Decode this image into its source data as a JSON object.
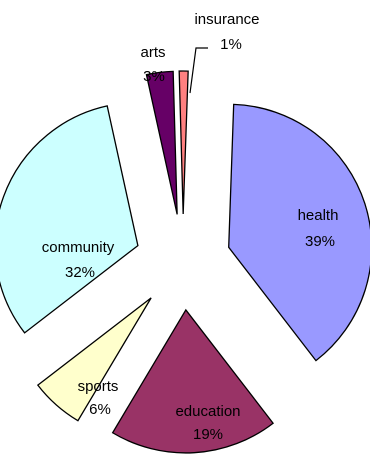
{
  "chart_data": {
    "type": "pie",
    "exploded": true,
    "title": "",
    "slices": [
      {
        "label": "health",
        "pct_text": "39%",
        "value": 39,
        "color": "#9999ff"
      },
      {
        "label": "education",
        "pct_text": "19%",
        "value": 19,
        "color": "#993366"
      },
      {
        "label": "sports",
        "pct_text": "6%",
        "value": 6,
        "color": "#ffffcc"
      },
      {
        "label": "community",
        "pct_text": "32%",
        "value": 32,
        "color": "#ccffff"
      },
      {
        "label": "arts",
        "pct_text": "3%",
        "value": 3,
        "color": "#660066"
      },
      {
        "label": "insurance",
        "pct_text": "1%",
        "value": 1,
        "color": "#ff8080"
      }
    ]
  }
}
